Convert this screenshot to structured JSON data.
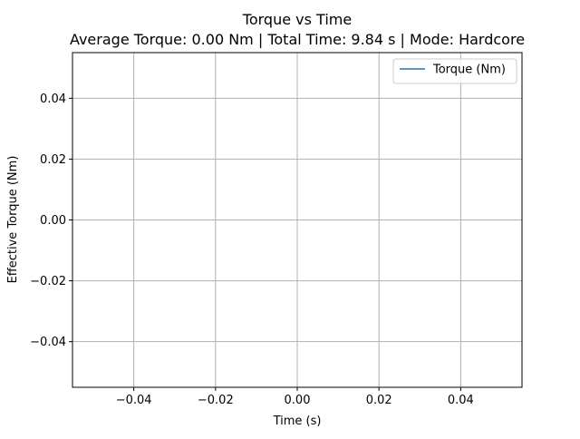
{
  "chart_data": {
    "type": "line",
    "title": "Torque vs Time",
    "subtitle": "Average Torque: 0.00 Nm | Total Time: 9.84 s | Mode: Hardcore",
    "xlabel": "Time (s)",
    "ylabel": "Effective Torque (Nm)",
    "xlim": [
      -0.055,
      0.055
    ],
    "ylim": [
      -0.055,
      0.055
    ],
    "xticks": [
      -0.04,
      -0.02,
      0.0,
      0.02,
      0.04
    ],
    "xtick_labels": [
      "−0.04",
      "−0.02",
      "0.00",
      "0.02",
      "0.04"
    ],
    "yticks": [
      -0.04,
      -0.02,
      0.0,
      0.02,
      0.04
    ],
    "ytick_labels": [
      "−0.04",
      "−0.02",
      "0.00",
      "0.02",
      "0.04"
    ],
    "grid": true,
    "legend_position": "top-right",
    "series": [
      {
        "name": "Torque (Nm)",
        "color": "#1f77b4",
        "x": [],
        "y": []
      }
    ]
  }
}
